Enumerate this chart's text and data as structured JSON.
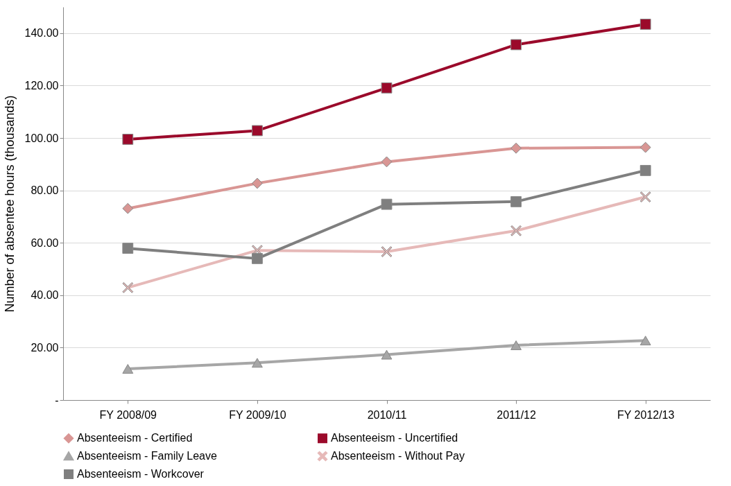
{
  "chart_data": {
    "type": "line",
    "ylabel": "Number of absentee hours (thousands)",
    "categories": [
      "FY 2008/09",
      "FY 2009/10",
      "2010/11",
      "2011/12",
      "FY 2012/13"
    ],
    "ylim": [
      0,
      150
    ],
    "yticks": [
      {
        "value": 0,
        "label": "-"
      },
      {
        "value": 20,
        "label": "20.00"
      },
      {
        "value": 40,
        "label": "40.00"
      },
      {
        "value": 60,
        "label": "60.00"
      },
      {
        "value": 80,
        "label": "80.00"
      },
      {
        "value": 100,
        "label": "100.00"
      },
      {
        "value": 120,
        "label": "120.00"
      },
      {
        "value": 140,
        "label": "140.00"
      }
    ],
    "grid": "y",
    "legend": "bottom",
    "line_style": "solid",
    "series": [
      {
        "name": "Absenteeism - Certified",
        "color": "#d99694",
        "marker": "diamond",
        "values": [
          73.1,
          82.7,
          90.9,
          96.1,
          96.4
        ]
      },
      {
        "name": "Absenteeism - Uncertified",
        "color": "#9b0a2b",
        "marker": "square",
        "values": [
          99.5,
          102.8,
          119.1,
          135.6,
          143.4
        ]
      },
      {
        "name": "Absenteeism - Family Leave",
        "color": "#a6a6a6",
        "marker": "triangle",
        "values": [
          11.9,
          14.2,
          17.3,
          20.9,
          22.7
        ]
      },
      {
        "name": "Absenteeism - Without Pay",
        "color": "#e6b9b8",
        "marker": "cross",
        "values": [
          42.9,
          57.1,
          56.6,
          64.6,
          77.5
        ]
      },
      {
        "name": "Absenteeism - Workcover",
        "color": "#7f7f7f",
        "marker": "square",
        "values": [
          57.9,
          54.0,
          74.7,
          75.7,
          87.6
        ]
      }
    ]
  }
}
